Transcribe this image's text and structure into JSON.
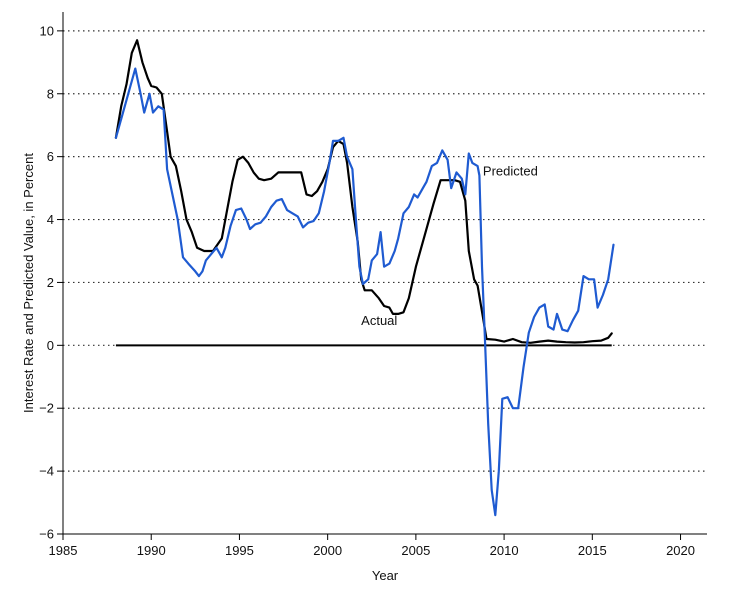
{
  "chart_data": {
    "type": "line",
    "xlabel": "Year",
    "ylabel": "Interest Rate and Predicted Value, in Percent",
    "xlim": [
      1985,
      2021.5
    ],
    "ylim": [
      -6,
      10.6
    ],
    "x_ticks": [
      1985,
      1990,
      1995,
      2000,
      2005,
      2010,
      2015,
      2020
    ],
    "y_ticks": [
      -6,
      -4,
      -2,
      0,
      2,
      4,
      6,
      8,
      10
    ],
    "grid": "horizontal dotted",
    "zero_line": true,
    "series": [
      {
        "name": "Actual",
        "color": "#000000",
        "points": [
          [
            1988.0,
            6.6
          ],
          [
            1988.3,
            7.6
          ],
          [
            1988.6,
            8.3
          ],
          [
            1988.9,
            9.3
          ],
          [
            1989.2,
            9.7
          ],
          [
            1989.5,
            9.0
          ],
          [
            1989.8,
            8.5
          ],
          [
            1990.0,
            8.25
          ],
          [
            1990.3,
            8.2
          ],
          [
            1990.6,
            8.0
          ],
          [
            1990.9,
            6.8
          ],
          [
            1991.1,
            6.0
          ],
          [
            1991.4,
            5.7
          ],
          [
            1991.7,
            4.9
          ],
          [
            1992.0,
            4.0
          ],
          [
            1992.3,
            3.6
          ],
          [
            1992.6,
            3.1
          ],
          [
            1993.0,
            3.0
          ],
          [
            1993.5,
            3.0
          ],
          [
            1994.0,
            3.4
          ],
          [
            1994.3,
            4.3
          ],
          [
            1994.6,
            5.2
          ],
          [
            1994.9,
            5.9
          ],
          [
            1995.2,
            6.0
          ],
          [
            1995.5,
            5.8
          ],
          [
            1995.8,
            5.5
          ],
          [
            1996.1,
            5.3
          ],
          [
            1996.4,
            5.25
          ],
          [
            1996.8,
            5.3
          ],
          [
            1997.2,
            5.5
          ],
          [
            1997.6,
            5.5
          ],
          [
            1998.0,
            5.5
          ],
          [
            1998.5,
            5.5
          ],
          [
            1998.8,
            4.8
          ],
          [
            1999.1,
            4.75
          ],
          [
            1999.4,
            4.9
          ],
          [
            1999.7,
            5.2
          ],
          [
            2000.0,
            5.6
          ],
          [
            2000.3,
            6.3
          ],
          [
            2000.6,
            6.5
          ],
          [
            2000.9,
            6.4
          ],
          [
            2001.1,
            5.8
          ],
          [
            2001.4,
            4.4
          ],
          [
            2001.7,
            3.3
          ],
          [
            2001.9,
            2.1
          ],
          [
            2002.1,
            1.75
          ],
          [
            2002.5,
            1.75
          ],
          [
            2002.9,
            1.5
          ],
          [
            2003.2,
            1.25
          ],
          [
            2003.5,
            1.2
          ],
          [
            2003.7,
            1.0
          ],
          [
            2004.0,
            1.0
          ],
          [
            2004.3,
            1.05
          ],
          [
            2004.6,
            1.5
          ],
          [
            2005.0,
            2.5
          ],
          [
            2005.5,
            3.5
          ],
          [
            2006.0,
            4.5
          ],
          [
            2006.4,
            5.25
          ],
          [
            2006.8,
            5.25
          ],
          [
            2007.2,
            5.25
          ],
          [
            2007.5,
            5.2
          ],
          [
            2007.8,
            4.6
          ],
          [
            2008.0,
            3.0
          ],
          [
            2008.3,
            2.1
          ],
          [
            2008.5,
            1.9
          ],
          [
            2008.8,
            0.9
          ],
          [
            2009.0,
            0.2
          ],
          [
            2009.5,
            0.18
          ],
          [
            2010.0,
            0.12
          ],
          [
            2010.5,
            0.2
          ],
          [
            2011.0,
            0.1
          ],
          [
            2011.5,
            0.08
          ],
          [
            2012.0,
            0.12
          ],
          [
            2012.5,
            0.15
          ],
          [
            2013.0,
            0.12
          ],
          [
            2013.5,
            0.1
          ],
          [
            2014.0,
            0.09
          ],
          [
            2014.5,
            0.1
          ],
          [
            2015.0,
            0.13
          ],
          [
            2015.5,
            0.15
          ],
          [
            2015.9,
            0.24
          ],
          [
            2016.1,
            0.38
          ]
        ]
      },
      {
        "name": "Predicted",
        "color": "#1f5bd1",
        "points": [
          [
            1988.0,
            6.6
          ],
          [
            1988.4,
            7.4
          ],
          [
            1988.8,
            8.2
          ],
          [
            1989.1,
            8.8
          ],
          [
            1989.4,
            8.0
          ],
          [
            1989.6,
            7.4
          ],
          [
            1989.9,
            8.0
          ],
          [
            1990.1,
            7.4
          ],
          [
            1990.4,
            7.6
          ],
          [
            1990.7,
            7.5
          ],
          [
            1990.9,
            5.6
          ],
          [
            1991.2,
            4.8
          ],
          [
            1991.5,
            4.0
          ],
          [
            1991.8,
            2.8
          ],
          [
            1992.1,
            2.6
          ],
          [
            1992.5,
            2.35
          ],
          [
            1992.7,
            2.2
          ],
          [
            1992.9,
            2.35
          ],
          [
            1993.1,
            2.7
          ],
          [
            1993.4,
            2.9
          ],
          [
            1993.7,
            3.1
          ],
          [
            1994.0,
            2.8
          ],
          [
            1994.2,
            3.1
          ],
          [
            1994.5,
            3.8
          ],
          [
            1994.8,
            4.3
          ],
          [
            1995.1,
            4.35
          ],
          [
            1995.4,
            4.0
          ],
          [
            1995.6,
            3.7
          ],
          [
            1995.9,
            3.85
          ],
          [
            1996.2,
            3.9
          ],
          [
            1996.5,
            4.1
          ],
          [
            1996.8,
            4.4
          ],
          [
            1997.1,
            4.6
          ],
          [
            1997.4,
            4.65
          ],
          [
            1997.7,
            4.3
          ],
          [
            1998.0,
            4.2
          ],
          [
            1998.3,
            4.1
          ],
          [
            1998.6,
            3.75
          ],
          [
            1998.9,
            3.9
          ],
          [
            1999.2,
            3.95
          ],
          [
            1999.5,
            4.2
          ],
          [
            1999.8,
            4.9
          ],
          [
            2000.1,
            5.8
          ],
          [
            2000.3,
            6.5
          ],
          [
            2000.6,
            6.5
          ],
          [
            2000.9,
            6.6
          ],
          [
            2001.1,
            6.0
          ],
          [
            2001.4,
            5.6
          ],
          [
            2001.6,
            4.0
          ],
          [
            2001.8,
            2.5
          ],
          [
            2002.0,
            1.95
          ],
          [
            2002.3,
            2.1
          ],
          [
            2002.5,
            2.7
          ],
          [
            2002.8,
            2.9
          ],
          [
            2003.0,
            3.6
          ],
          [
            2003.2,
            2.5
          ],
          [
            2003.5,
            2.6
          ],
          [
            2003.8,
            3.0
          ],
          [
            2004.0,
            3.4
          ],
          [
            2004.3,
            4.2
          ],
          [
            2004.6,
            4.4
          ],
          [
            2004.9,
            4.8
          ],
          [
            2005.1,
            4.7
          ],
          [
            2005.4,
            5.0
          ],
          [
            2005.6,
            5.2
          ],
          [
            2005.9,
            5.7
          ],
          [
            2006.2,
            5.8
          ],
          [
            2006.5,
            6.2
          ],
          [
            2006.8,
            5.9
          ],
          [
            2007.0,
            5.0
          ],
          [
            2007.3,
            5.5
          ],
          [
            2007.6,
            5.3
          ],
          [
            2007.8,
            4.8
          ],
          [
            2008.0,
            6.1
          ],
          [
            2008.2,
            5.8
          ],
          [
            2008.5,
            5.7
          ],
          [
            2008.6,
            5.4
          ],
          [
            2008.75,
            2.5
          ],
          [
            2008.9,
            0.4
          ],
          [
            2009.1,
            -2.5
          ],
          [
            2009.3,
            -4.6
          ],
          [
            2009.5,
            -5.4
          ],
          [
            2009.7,
            -4.0
          ],
          [
            2009.9,
            -1.7
          ],
          [
            2010.2,
            -1.65
          ],
          [
            2010.5,
            -2.0
          ],
          [
            2010.8,
            -2.0
          ],
          [
            2011.1,
            -0.7
          ],
          [
            2011.4,
            0.4
          ],
          [
            2011.7,
            0.9
          ],
          [
            2012.0,
            1.2
          ],
          [
            2012.3,
            1.3
          ],
          [
            2012.5,
            0.6
          ],
          [
            2012.8,
            0.5
          ],
          [
            2013.0,
            1.0
          ],
          [
            2013.3,
            0.5
          ],
          [
            2013.6,
            0.45
          ],
          [
            2013.9,
            0.8
          ],
          [
            2014.2,
            1.1
          ],
          [
            2014.5,
            2.2
          ],
          [
            2014.8,
            2.1
          ],
          [
            2015.1,
            2.1
          ],
          [
            2015.3,
            1.2
          ],
          [
            2015.6,
            1.6
          ],
          [
            2015.9,
            2.1
          ],
          [
            2016.2,
            3.2
          ]
        ]
      }
    ],
    "annotations": [
      {
        "text": "Predicted",
        "x": 2008.8,
        "y": 5.4
      },
      {
        "text": "Actual",
        "x": 2001.9,
        "y": 0.65
      }
    ]
  }
}
